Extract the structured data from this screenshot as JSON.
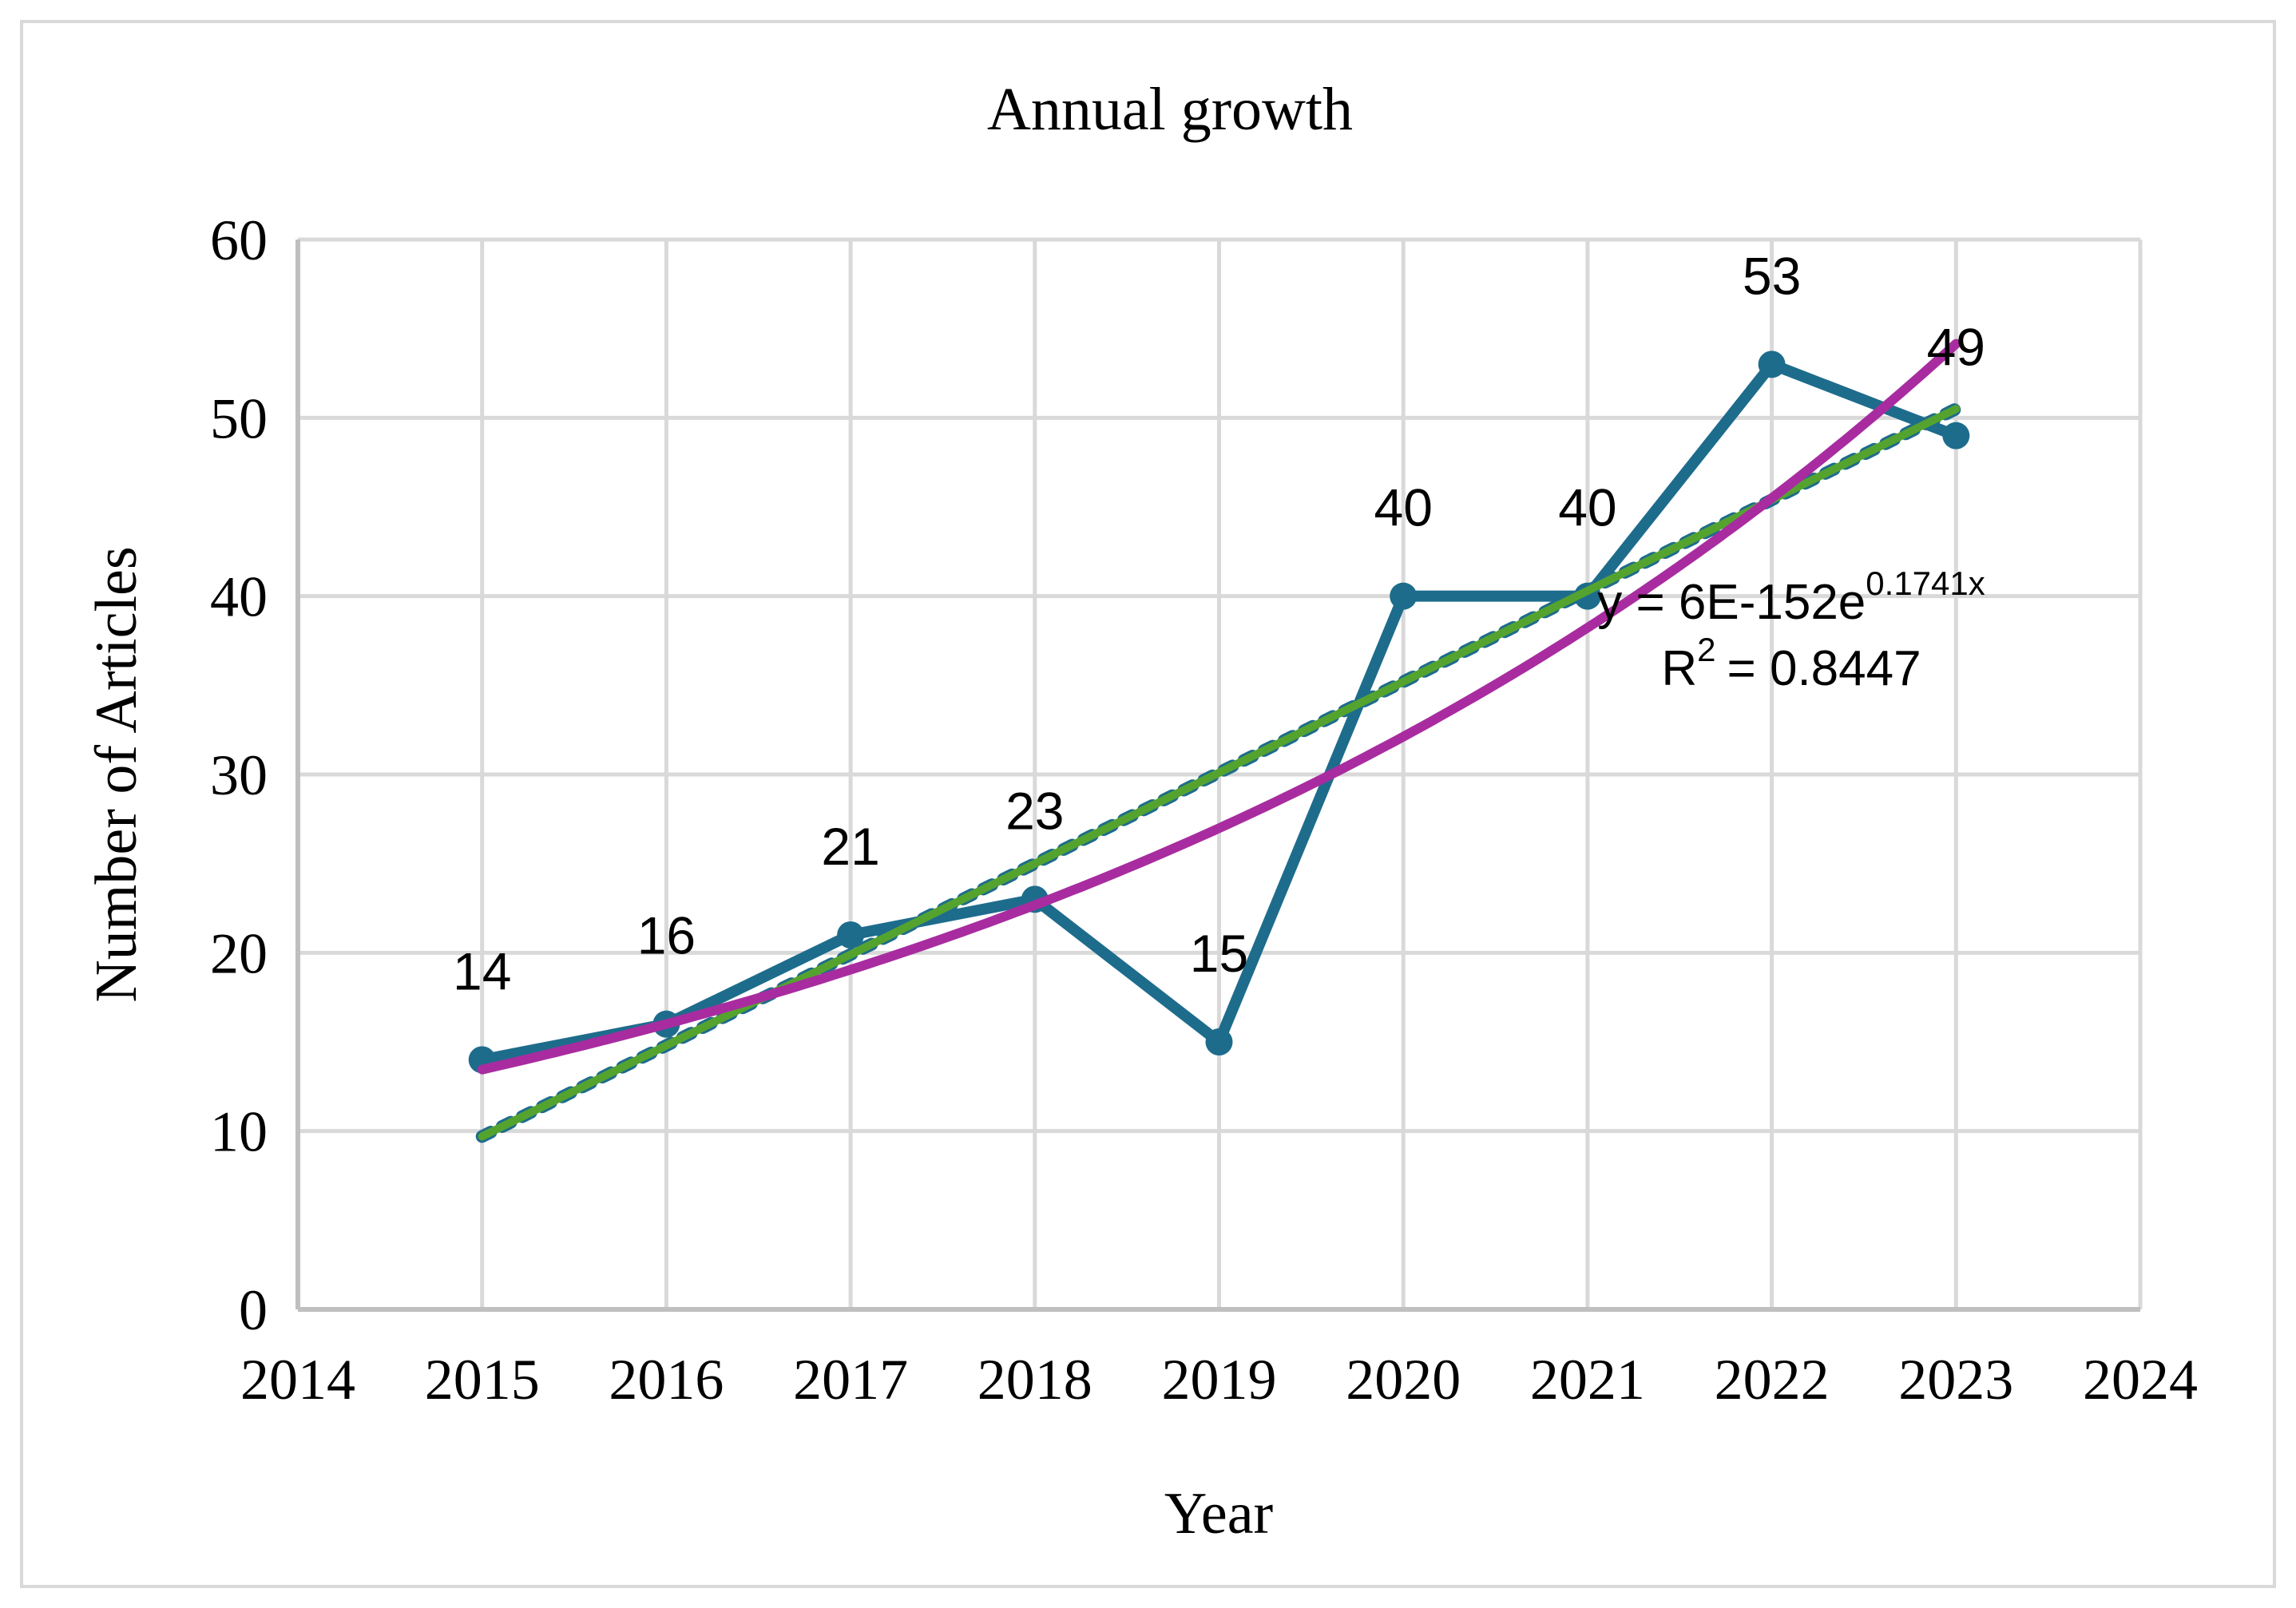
{
  "chart_data": {
    "type": "line",
    "title": "Annual growth",
    "xlabel": "Year",
    "ylabel": "Number of Articles",
    "x": [
      2015,
      2016,
      2017,
      2018,
      2019,
      2020,
      2021,
      2022,
      2023
    ],
    "series": [
      {
        "name": "Number of Articles",
        "values": [
          14,
          16,
          21,
          23,
          15,
          40,
          40,
          53,
          49
        ]
      }
    ],
    "data_labels": [
      "14",
      "16",
      "21",
      "23",
      "15",
      "40",
      "40",
      "53",
      "49"
    ],
    "x_tick_labels": [
      "2014",
      "2015",
      "2016",
      "2017",
      "2018",
      "2019",
      "2020",
      "2021",
      "2022",
      "2023",
      "2024"
    ],
    "y_tick_labels": [
      "0",
      "10",
      "20",
      "30",
      "40",
      "50",
      "60"
    ],
    "xlim": [
      2014,
      2024
    ],
    "ylim": [
      0,
      60
    ],
    "grid": true,
    "legend": "none",
    "trendlines": [
      {
        "name": "linear-dashed",
        "style": "dashed",
        "color_role": "series_teal",
        "x_start": 2015,
        "y_start": 9.7,
        "x_end": 2023,
        "y_end": 50.5
      },
      {
        "name": "linear-solid",
        "style": "solid",
        "color_role": "trend_green",
        "x_start": 2015,
        "y_start": 9.7,
        "x_end": 2023,
        "y_end": 50.5
      },
      {
        "name": "exponential",
        "style": "solid",
        "color_role": "trend_magenta",
        "x_start": 2015,
        "x_end": 2023,
        "base_value": 13.45,
        "growth_rate": 0.1741
      }
    ],
    "annotation": {
      "equation_prefix": "y = 6E-152e",
      "equation_exponent": "0.1741x",
      "r2_prefix": "R",
      "r2_sup": "2",
      "r2_suffix": "= 0.8447"
    },
    "colors": {
      "series_teal": "#1E6C8C",
      "trend_green": "#55A32F",
      "trend_magenta": "#A82CA0",
      "gridline": "#D9D9D9",
      "axis_line": "#BFBFBF",
      "border": "#D9D9D9",
      "text": "#000000"
    }
  }
}
